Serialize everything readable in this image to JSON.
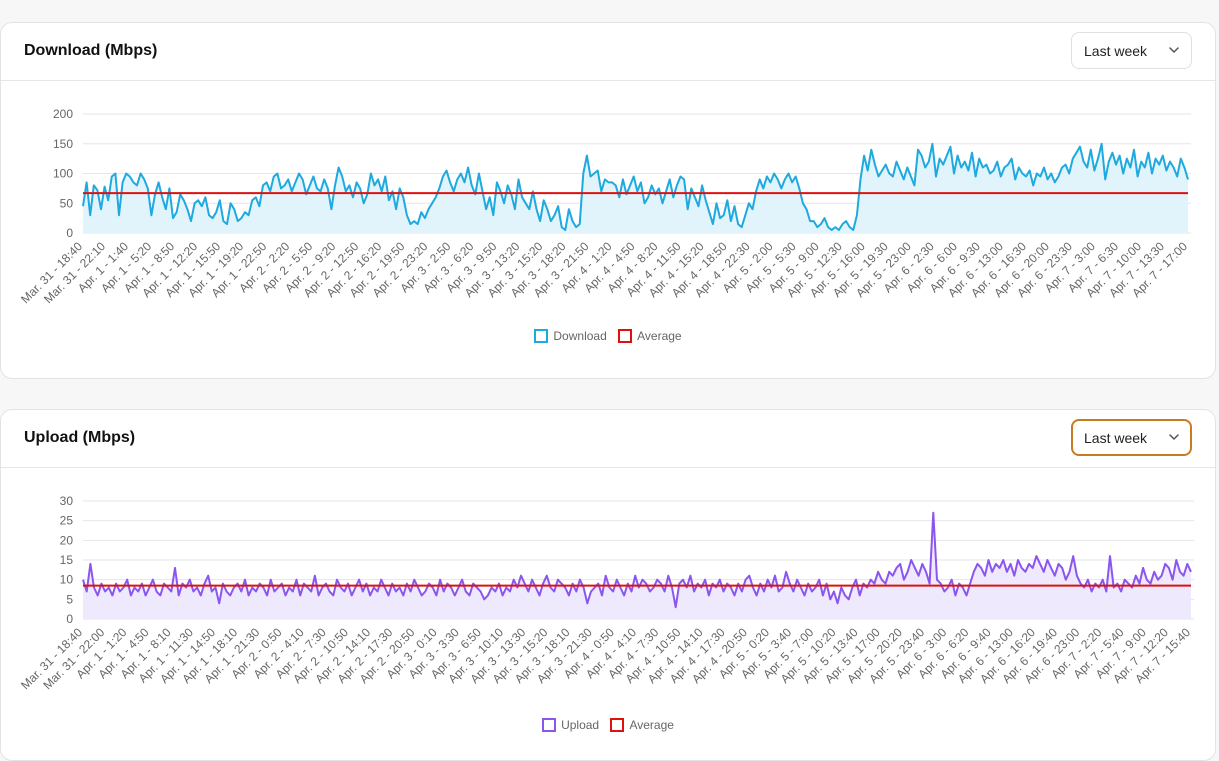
{
  "charts": {
    "download": {
      "title": "Download (Mbps)",
      "period": "Last week",
      "legend": {
        "series": "Download",
        "average": "Average"
      },
      "colors": {
        "line": "#1ea9df",
        "fill": "#e1f4fb",
        "average": "#dd1111"
      }
    },
    "upload": {
      "title": "Upload (Mbps)",
      "period": "Last week",
      "legend": {
        "series": "Upload",
        "average": "Average"
      },
      "colors": {
        "line": "#8b55ef",
        "fill": "#efe9fd",
        "average": "#dd1111"
      }
    }
  },
  "chart_data": [
    {
      "type": "area",
      "title": "Download (Mbps)",
      "ylim": [
        0,
        200
      ],
      "yticks": [
        0,
        50,
        100,
        150,
        200
      ],
      "average": 67,
      "x_tick_labels": [
        "Mar. 31 - 18:40",
        "Mar. 31 - 22:10",
        "Apr. 1 - 1:40",
        "Apr. 1 - 5:20",
        "Apr. 1 - 8:50",
        "Apr. 1 - 12:20",
        "Apr. 1 - 15:50",
        "Apr. 1 - 19:20",
        "Apr. 1 - 22:50",
        "Apr. 2 - 2:20",
        "Apr. 2 - 5:50",
        "Apr. 2 - 9:20",
        "Apr. 2 - 12:50",
        "Apr. 2 - 16:20",
        "Apr. 2 - 19:50",
        "Apr. 2 - 23:20",
        "Apr. 3 - 2:50",
        "Apr. 3 - 6:20",
        "Apr. 3 - 9:50",
        "Apr. 3 - 13:20",
        "Apr. 3 - 15:20",
        "Apr. 3 - 18:20",
        "Apr. 3 - 21:50",
        "Apr. 4 - 1:20",
        "Apr. 4 - 4:50",
        "Apr. 4 - 8:20",
        "Apr. 4 - 11:50",
        "Apr. 4 - 15:20",
        "Apr. 4 - 18:50",
        "Apr. 4 - 22:30",
        "Apr. 5 - 2:00",
        "Apr. 5 - 5:30",
        "Apr. 5 - 9:00",
        "Apr. 5 - 12:30",
        "Apr. 5 - 16:00",
        "Apr. 5 - 19:30",
        "Apr. 5 - 23:00",
        "Apr. 6 - 2:30",
        "Apr. 6 - 6:00",
        "Apr. 6 - 9:30",
        "Apr. 6 - 13:00",
        "Apr. 6 - 16:30",
        "Apr. 6 - 20:00",
        "Apr. 6 - 23:30",
        "Apr. 7 - 3:00",
        "Apr. 7 - 6:30",
        "Apr. 7 - 10:00",
        "Apr. 7 - 13:30",
        "Apr. 7 - 17:00"
      ],
      "series": [
        {
          "name": "Download",
          "values": [
            45,
            85,
            30,
            80,
            72,
            40,
            78,
            55,
            95,
            100,
            30,
            85,
            100,
            95,
            85,
            80,
            100,
            90,
            75,
            30,
            65,
            85,
            60,
            40,
            75,
            25,
            35,
            65,
            55,
            40,
            20,
            50,
            55,
            45,
            60,
            30,
            25,
            35,
            55,
            20,
            15,
            50,
            40,
            20,
            25,
            35,
            30,
            55,
            60,
            45,
            80,
            85,
            70,
            95,
            100,
            75,
            80,
            90,
            70,
            85,
            100,
            90,
            65,
            80,
            95,
            75,
            70,
            90,
            75,
            40,
            80,
            110,
            95,
            70,
            80,
            60,
            85,
            75,
            50,
            65,
            100,
            80,
            90,
            70,
            95,
            55,
            70,
            40,
            75,
            60,
            30,
            15,
            20,
            15,
            35,
            25,
            40,
            50,
            60,
            75,
            95,
            105,
            85,
            70,
            90,
            100,
            85,
            110,
            80,
            65,
            100,
            70,
            40,
            60,
            30,
            85,
            70,
            50,
            80,
            65,
            40,
            90,
            60,
            50,
            40,
            70,
            40,
            20,
            55,
            40,
            20,
            30,
            45,
            10,
            5,
            40,
            20,
            10,
            15,
            100,
            130,
            95,
            100,
            105,
            70,
            90,
            85,
            85,
            80,
            60,
            90,
            65,
            80,
            95,
            70,
            85,
            50,
            60,
            80,
            65,
            75,
            50,
            70,
            90,
            60,
            80,
            95,
            90,
            40,
            75,
            60,
            45,
            80,
            55,
            35,
            15,
            50,
            25,
            30,
            55,
            20,
            45,
            15,
            10,
            30,
            50,
            40,
            70,
            90,
            75,
            95,
            85,
            100,
            90,
            75,
            90,
            100,
            85,
            95,
            75,
            50,
            40,
            20,
            20,
            10,
            15,
            25,
            10,
            5,
            10,
            5,
            15,
            20,
            10,
            5,
            30,
            90,
            130,
            105,
            140,
            115,
            95,
            105,
            115,
            100,
            95,
            120,
            105,
            90,
            110,
            95,
            80,
            140,
            130,
            110,
            120,
            150,
            95,
            125,
            115,
            130,
            145,
            100,
            130,
            110,
            120,
            105,
            135,
            95,
            125,
            110,
            115,
            100,
            105,
            120,
            95,
            110,
            115,
            125,
            90,
            110,
            100,
            95,
            105,
            80,
            100,
            95,
            110,
            90,
            100,
            85,
            95,
            110,
            115,
            100,
            125,
            135,
            145,
            120,
            110,
            140,
            105,
            125,
            150,
            90,
            120,
            135,
            115,
            130,
            100,
            125,
            110,
            140,
            95,
            120,
            110,
            135,
            100,
            125,
            115,
            130,
            105,
            120,
            110,
            95,
            125,
            110,
            90
          ]
        }
      ]
    },
    {
      "type": "area",
      "title": "Upload (Mbps)",
      "ylim": [
        0,
        30
      ],
      "yticks": [
        0,
        5,
        10,
        15,
        20,
        25,
        30
      ],
      "average": 8.5,
      "x_tick_labels": [
        "Mar. 31 - 18:40",
        "Mar. 31 - 22:00",
        "Apr. 1 - 1:20",
        "Apr. 1 - 4:50",
        "Apr. 1 - 8:10",
        "Apr. 1 - 11:30",
        "Apr. 1 - 14:50",
        "Apr. 1 - 18:10",
        "Apr. 1 - 21:30",
        "Apr. 2 - 0:50",
        "Apr. 2 - 4:10",
        "Apr. 2 - 7:30",
        "Apr. 2 - 10:50",
        "Apr. 2 - 14:10",
        "Apr. 2 - 17:30",
        "Apr. 2 - 20:50",
        "Apr. 3 - 0:10",
        "Apr. 3 - 3:30",
        "Apr. 3 - 6:50",
        "Apr. 3 - 10:10",
        "Apr. 3 - 13:30",
        "Apr. 3 - 15:20",
        "Apr. 3 - 18:10",
        "Apr. 3 - 21:30",
        "Apr. 4 - 0:50",
        "Apr. 4 - 4:10",
        "Apr. 4 - 7:30",
        "Apr. 4 - 10:50",
        "Apr. 4 - 14:10",
        "Apr. 4 - 17:30",
        "Apr. 4 - 20:50",
        "Apr. 5 - 0:20",
        "Apr. 5 - 3:40",
        "Apr. 5 - 7:00",
        "Apr. 5 - 10:20",
        "Apr. 5 - 13:40",
        "Apr. 5 - 17:00",
        "Apr. 5 - 20:20",
        "Apr. 5 - 23:40",
        "Apr. 6 - 3:00",
        "Apr. 6 - 6:20",
        "Apr. 6 - 9:40",
        "Apr. 6 - 13:00",
        "Apr. 6 - 16:20",
        "Apr. 6 - 19:40",
        "Apr. 6 - 23:00",
        "Apr. 7 - 2:20",
        "Apr. 7 - 5:40",
        "Apr. 7 - 9:00",
        "Apr. 7 - 12:20",
        "Apr. 7 - 15:40"
      ],
      "series": [
        {
          "name": "Upload",
          "values": [
            10,
            7,
            14,
            8,
            6,
            9,
            7,
            8,
            6,
            9,
            7,
            8,
            10,
            6,
            8,
            7,
            9,
            6,
            8,
            10,
            7,
            6,
            9,
            8,
            7,
            13,
            6,
            9,
            8,
            10,
            7,
            8,
            6,
            9,
            11,
            7,
            8,
            4,
            9,
            7,
            6,
            8,
            9,
            7,
            10,
            6,
            8,
            7,
            9,
            8,
            6,
            10,
            7,
            8,
            9,
            6,
            8,
            7,
            10,
            6,
            9,
            8,
            7,
            11,
            6,
            8,
            9,
            7,
            6,
            10,
            8,
            7,
            9,
            6,
            8,
            10,
            7,
            9,
            6,
            8,
            7,
            10,
            8,
            6,
            9,
            7,
            8,
            6,
            9,
            7,
            10,
            8,
            6,
            7,
            9,
            8,
            6,
            10,
            7,
            9,
            8,
            6,
            8,
            10,
            7,
            6,
            9,
            8,
            7,
            5,
            6,
            8,
            7,
            9,
            6,
            8,
            7,
            10,
            8,
            11,
            9,
            7,
            10,
            8,
            6,
            9,
            11,
            8,
            7,
            10,
            9,
            8,
            6,
            9,
            7,
            10,
            8,
            4,
            7,
            8,
            9,
            6,
            11,
            8,
            7,
            10,
            8,
            6,
            9,
            7,
            11,
            8,
            10,
            9,
            7,
            8,
            10,
            9,
            7,
            11,
            8,
            3,
            9,
            10,
            8,
            11,
            7,
            9,
            8,
            10,
            6,
            9,
            8,
            10,
            7,
            9,
            8,
            6,
            9,
            7,
            10,
            11,
            8,
            6,
            9,
            7,
            10,
            8,
            11,
            7,
            8,
            12,
            9,
            7,
            10,
            8,
            6,
            9,
            7,
            8,
            10,
            6,
            9,
            5,
            7,
            4,
            8,
            6,
            5,
            8,
            10,
            6,
            9,
            8,
            10,
            9,
            12,
            10,
            9,
            12,
            11,
            13,
            14,
            10,
            12,
            15,
            13,
            11,
            14,
            12,
            9,
            27,
            10,
            9,
            7,
            8,
            10,
            6,
            9,
            8,
            6,
            9,
            12,
            14,
            13,
            11,
            15,
            12,
            14,
            13,
            15,
            12,
            14,
            11,
            15,
            13,
            12,
            14,
            13,
            16,
            14,
            12,
            15,
            13,
            11,
            14,
            13,
            10,
            12,
            16,
            11,
            9,
            8,
            10,
            7,
            9,
            8,
            10,
            7,
            16,
            8,
            9,
            7,
            10,
            9,
            8,
            11,
            9,
            13,
            10,
            9,
            12,
            10,
            11,
            14,
            13,
            10,
            15,
            12,
            11,
            14,
            12
          ]
        }
      ]
    }
  ]
}
